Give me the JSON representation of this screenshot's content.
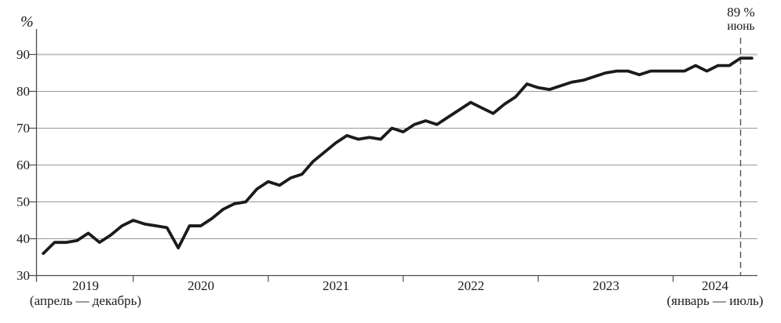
{
  "chart_data": {
    "type": "line",
    "title": "",
    "xlabel": "",
    "ylabel": "%",
    "x_unit": "month",
    "ylim": [
      30,
      95
    ],
    "grid": true,
    "legend": false,
    "year_order": [
      "2019",
      "2020",
      "2021",
      "2022",
      "2023",
      "2024"
    ],
    "values_by_year": {
      "2019": [
        36,
        39,
        39,
        39.5,
        41.5,
        39,
        41,
        43.5,
        45
      ],
      "2020": [
        44,
        43.5,
        43,
        37.5,
        43.5,
        43.5,
        45.5,
        48,
        49.5,
        50,
        53.5,
        55.5
      ],
      "2021": [
        54.5,
        56.5,
        57.5,
        61,
        63.5,
        66,
        68,
        67,
        67.5,
        67,
        70,
        69
      ],
      "2022": [
        71,
        72,
        71,
        73,
        75,
        77,
        75.5,
        74,
        76.5,
        78.5,
        82,
        81
      ],
      "2023": [
        80.5,
        81.5,
        82.5,
        83,
        84,
        85,
        85.5,
        85.5,
        84.5,
        85.5,
        85.5,
        85.5
      ],
      "2024": [
        85.5,
        87,
        85.5,
        87,
        87,
        89,
        89
      ]
    },
    "y_axis": {
      "unit_label": "%",
      "ticks": [
        "90",
        "80",
        "70",
        "60",
        "50",
        "40",
        "30"
      ],
      "tick_values": [
        90,
        80,
        70,
        60,
        50,
        40,
        30
      ]
    },
    "x_axis": {
      "years": [
        {
          "label": "2019",
          "sublabel": "(апрель — декабрь)"
        },
        {
          "label": "2020",
          "sublabel": ""
        },
        {
          "label": "2021",
          "sublabel": ""
        },
        {
          "label": "2022",
          "sublabel": ""
        },
        {
          "label": "2023",
          "sublabel": ""
        },
        {
          "label": "2024",
          "sublabel": "(январь — июль)"
        }
      ]
    },
    "annotation": {
      "value": "89 %",
      "month": "июнь",
      "month_index": 62
    },
    "colors": {
      "line": "#1b1b1b",
      "gridline": "#999999",
      "gridline_light": "#c9c9c9",
      "axis": "#4d4d4d",
      "dashed": "#555555",
      "text": "#1a1a1a",
      "background": "#ffffff"
    }
  }
}
